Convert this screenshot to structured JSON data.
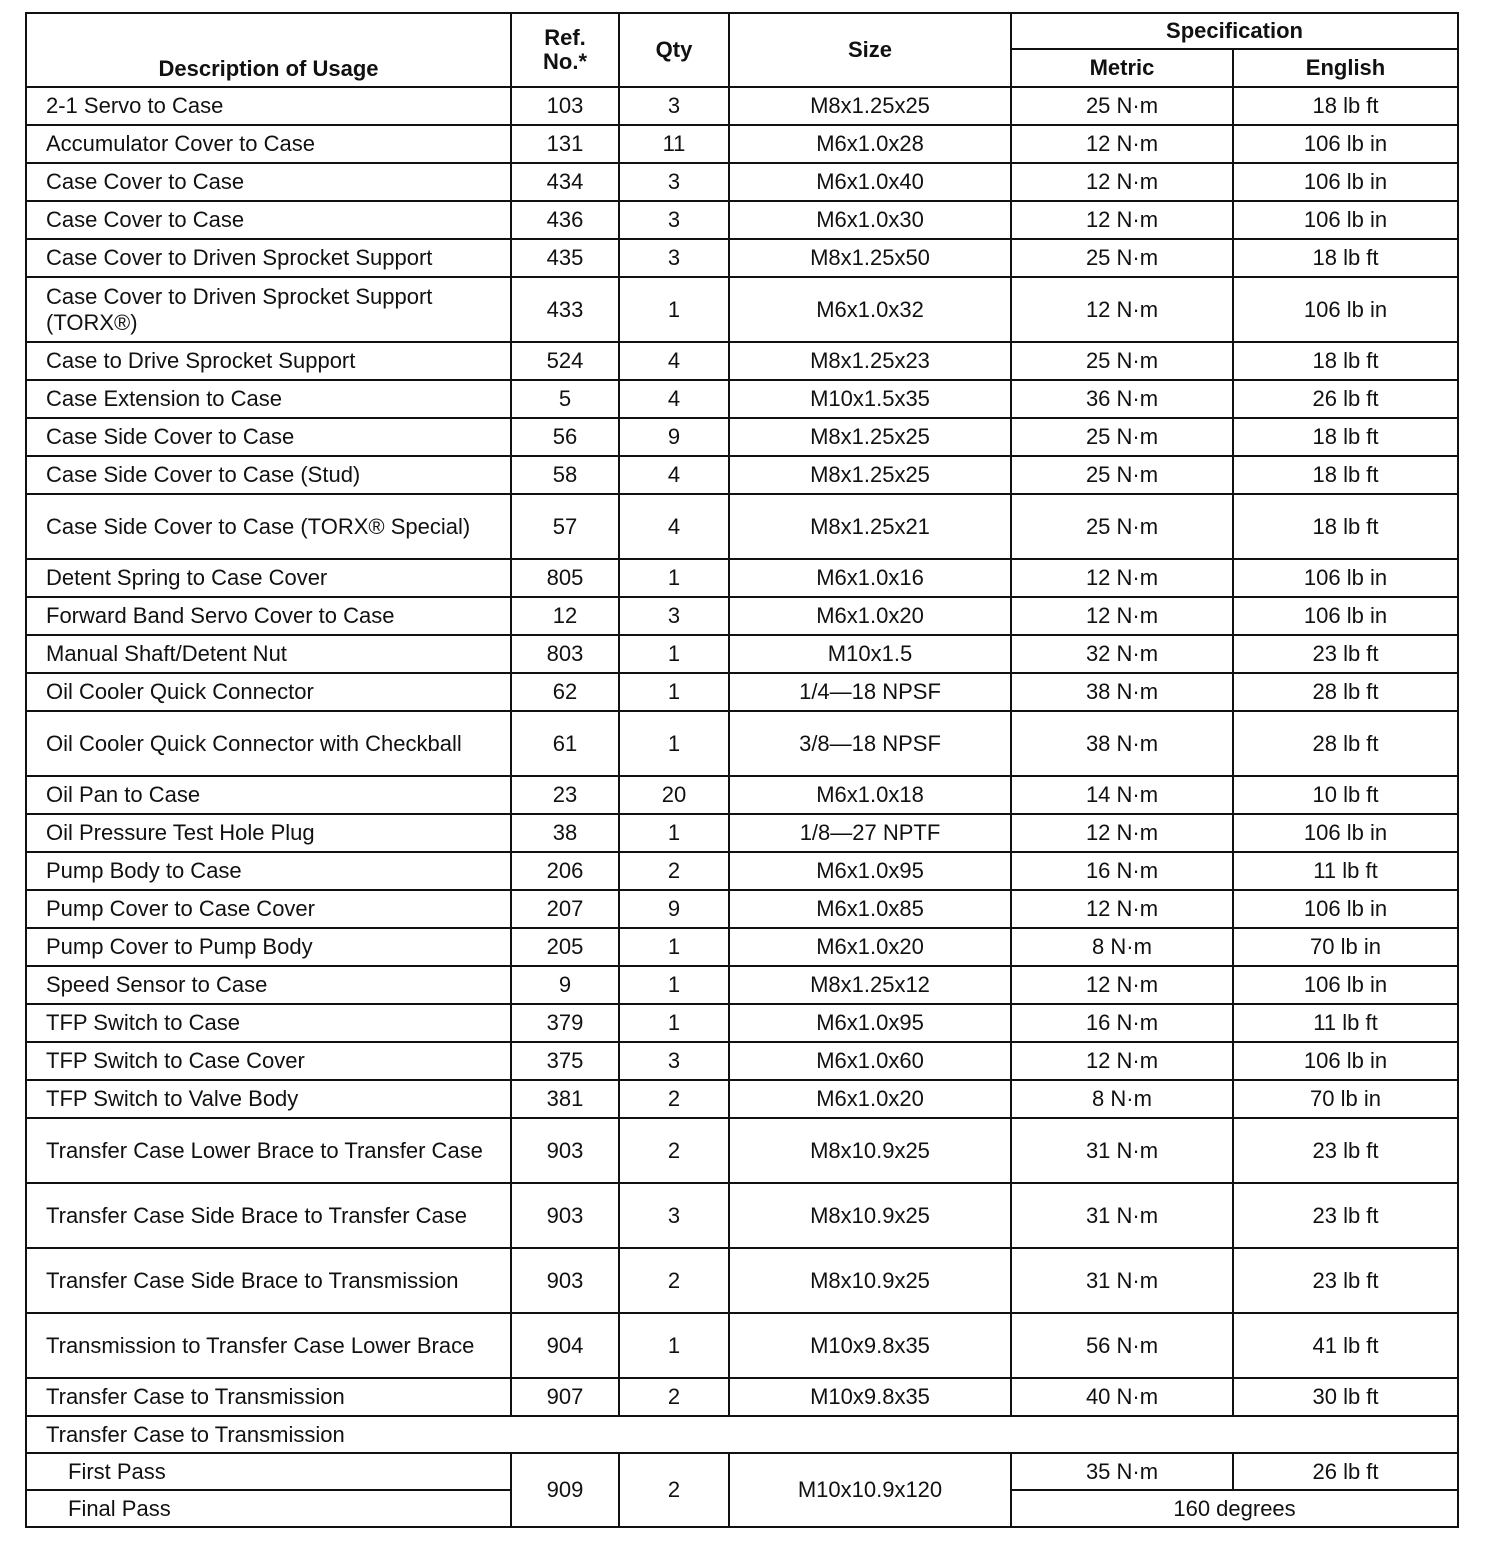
{
  "headers": {
    "description": "Description of Usage",
    "ref": "Ref. No.*",
    "qty": "Qty",
    "size": "Size",
    "specification": "Specification",
    "metric": "Metric",
    "english": "English"
  },
  "rows": [
    {
      "description": "2-1 Servo to Case",
      "ref": "103",
      "qty": "3",
      "size": "M8x1.25x25",
      "metric": "25 N·m",
      "english": "18 lb ft"
    },
    {
      "description": "Accumulator Cover to Case",
      "ref": "131",
      "qty": "11",
      "size": "M6x1.0x28",
      "metric": "12 N·m",
      "english": "106 lb in"
    },
    {
      "description": "Case Cover to Case",
      "ref": "434",
      "qty": "3",
      "size": "M6x1.0x40",
      "metric": "12 N·m",
      "english": "106 lb in"
    },
    {
      "description": "Case Cover to Case",
      "ref": "436",
      "qty": "3",
      "size": "M6x1.0x30",
      "metric": "12 N·m",
      "english": "106 lb in"
    },
    {
      "description": "Case Cover to Driven Sprocket Support",
      "ref": "435",
      "qty": "3",
      "size": "M8x1.25x50",
      "metric": "25 N·m",
      "english": "18 lb ft"
    },
    {
      "description": "Case Cover to Driven Sprocket Support (TORX®)",
      "ref": "433",
      "qty": "1",
      "size": "M6x1.0x32",
      "metric": "12 N·m",
      "english": "106 lb in",
      "double": true
    },
    {
      "description": "Case to Drive Sprocket Support",
      "ref": "524",
      "qty": "4",
      "size": "M8x1.25x23",
      "metric": "25 N·m",
      "english": "18 lb ft"
    },
    {
      "description": "Case Extension to Case",
      "ref": "5",
      "qty": "4",
      "size": "M10x1.5x35",
      "metric": "36 N·m",
      "english": "26 lb ft"
    },
    {
      "description": "Case Side Cover to Case",
      "ref": "56",
      "qty": "9",
      "size": "M8x1.25x25",
      "metric": "25 N·m",
      "english": "18 lb ft"
    },
    {
      "description": "Case Side Cover to Case (Stud)",
      "ref": "58",
      "qty": "4",
      "size": "M8x1.25x25",
      "metric": "25 N·m",
      "english": "18 lb ft"
    },
    {
      "description": "Case Side Cover to Case (TORX® Special)",
      "ref": "57",
      "qty": "4",
      "size": "M8x1.25x21",
      "metric": "25 N·m",
      "english": "18 lb ft",
      "double": true
    },
    {
      "description": "Detent Spring to Case Cover",
      "ref": "805",
      "qty": "1",
      "size": "M6x1.0x16",
      "metric": "12 N·m",
      "english": "106 lb in"
    },
    {
      "description": "Forward Band Servo Cover to Case",
      "ref": "12",
      "qty": "3",
      "size": "M6x1.0x20",
      "metric": "12 N·m",
      "english": "106 lb in"
    },
    {
      "description": "Manual Shaft/Detent Nut",
      "ref": "803",
      "qty": "1",
      "size": "M10x1.5",
      "metric": "32 N·m",
      "english": "23 lb ft"
    },
    {
      "description": "Oil Cooler Quick Connector",
      "ref": "62",
      "qty": "1",
      "size": "1/4—18 NPSF",
      "metric": "38 N·m",
      "english": "28 lb ft"
    },
    {
      "description": "Oil Cooler Quick Connector with Checkball",
      "ref": "61",
      "qty": "1",
      "size": "3/8—18 NPSF",
      "metric": "38 N·m",
      "english": "28 lb ft",
      "double": true
    },
    {
      "description": "Oil Pan to Case",
      "ref": "23",
      "qty": "20",
      "size": "M6x1.0x18",
      "metric": "14 N·m",
      "english": "10 lb ft"
    },
    {
      "description": "Oil Pressure Test Hole Plug",
      "ref": "38",
      "qty": "1",
      "size": "1/8—27 NPTF",
      "metric": "12 N·m",
      "english": "106 lb in"
    },
    {
      "description": "Pump Body to Case",
      "ref": "206",
      "qty": "2",
      "size": "M6x1.0x95",
      "metric": "16 N·m",
      "english": "11 lb ft"
    },
    {
      "description": "Pump Cover to Case Cover",
      "ref": "207",
      "qty": "9",
      "size": "M6x1.0x85",
      "metric": "12 N·m",
      "english": "106 lb in"
    },
    {
      "description": "Pump Cover to Pump Body",
      "ref": "205",
      "qty": "1",
      "size": "M6x1.0x20",
      "metric": "8 N·m",
      "english": "70 lb in"
    },
    {
      "description": "Speed Sensor to Case",
      "ref": "9",
      "qty": "1",
      "size": "M8x1.25x12",
      "metric": "12 N·m",
      "english": "106 lb in"
    },
    {
      "description": "TFP Switch to Case",
      "ref": "379",
      "qty": "1",
      "size": "M6x1.0x95",
      "metric": "16 N·m",
      "english": "11 lb ft"
    },
    {
      "description": "TFP Switch to Case Cover",
      "ref": "375",
      "qty": "3",
      "size": "M6x1.0x60",
      "metric": "12 N·m",
      "english": "106 lb in"
    },
    {
      "description": "TFP Switch to Valve Body",
      "ref": "381",
      "qty": "2",
      "size": "M6x1.0x20",
      "metric": "8 N·m",
      "english": "70 lb in"
    },
    {
      "description": "Transfer Case Lower Brace to Transfer Case",
      "ref": "903",
      "qty": "2",
      "size": "M8x10.9x25",
      "metric": "31 N·m",
      "english": "23 lb ft",
      "double": true
    },
    {
      "description": "Transfer Case Side Brace to Transfer Case",
      "ref": "903",
      "qty": "3",
      "size": "M8x10.9x25",
      "metric": "31 N·m",
      "english": "23 lb ft",
      "double": true
    },
    {
      "description": "Transfer Case Side Brace to Transmission",
      "ref": "903",
      "qty": "2",
      "size": "M8x10.9x25",
      "metric": "31 N·m",
      "english": "23 lb ft",
      "double": true
    },
    {
      "description": "Transmission to Transfer Case Lower Brace",
      "ref": "904",
      "qty": "1",
      "size": "M10x9.8x35",
      "metric": "56 N·m",
      "english": "41 lb ft",
      "double": true
    },
    {
      "description": "Transfer Case to Transmission",
      "ref": "907",
      "qty": "2",
      "size": "M10x9.8x35",
      "metric": "40 N·m",
      "english": "30 lb ft"
    }
  ],
  "group": {
    "description": "Transfer Case to Transmission",
    "ref": "909",
    "qty": "2",
    "size": "M10x10.9x120",
    "first_pass": {
      "label": "First Pass",
      "metric": "35 N·m",
      "english": "26 lb ft"
    },
    "final_pass": {
      "label": "Final Pass",
      "spec": "160 degrees"
    }
  }
}
